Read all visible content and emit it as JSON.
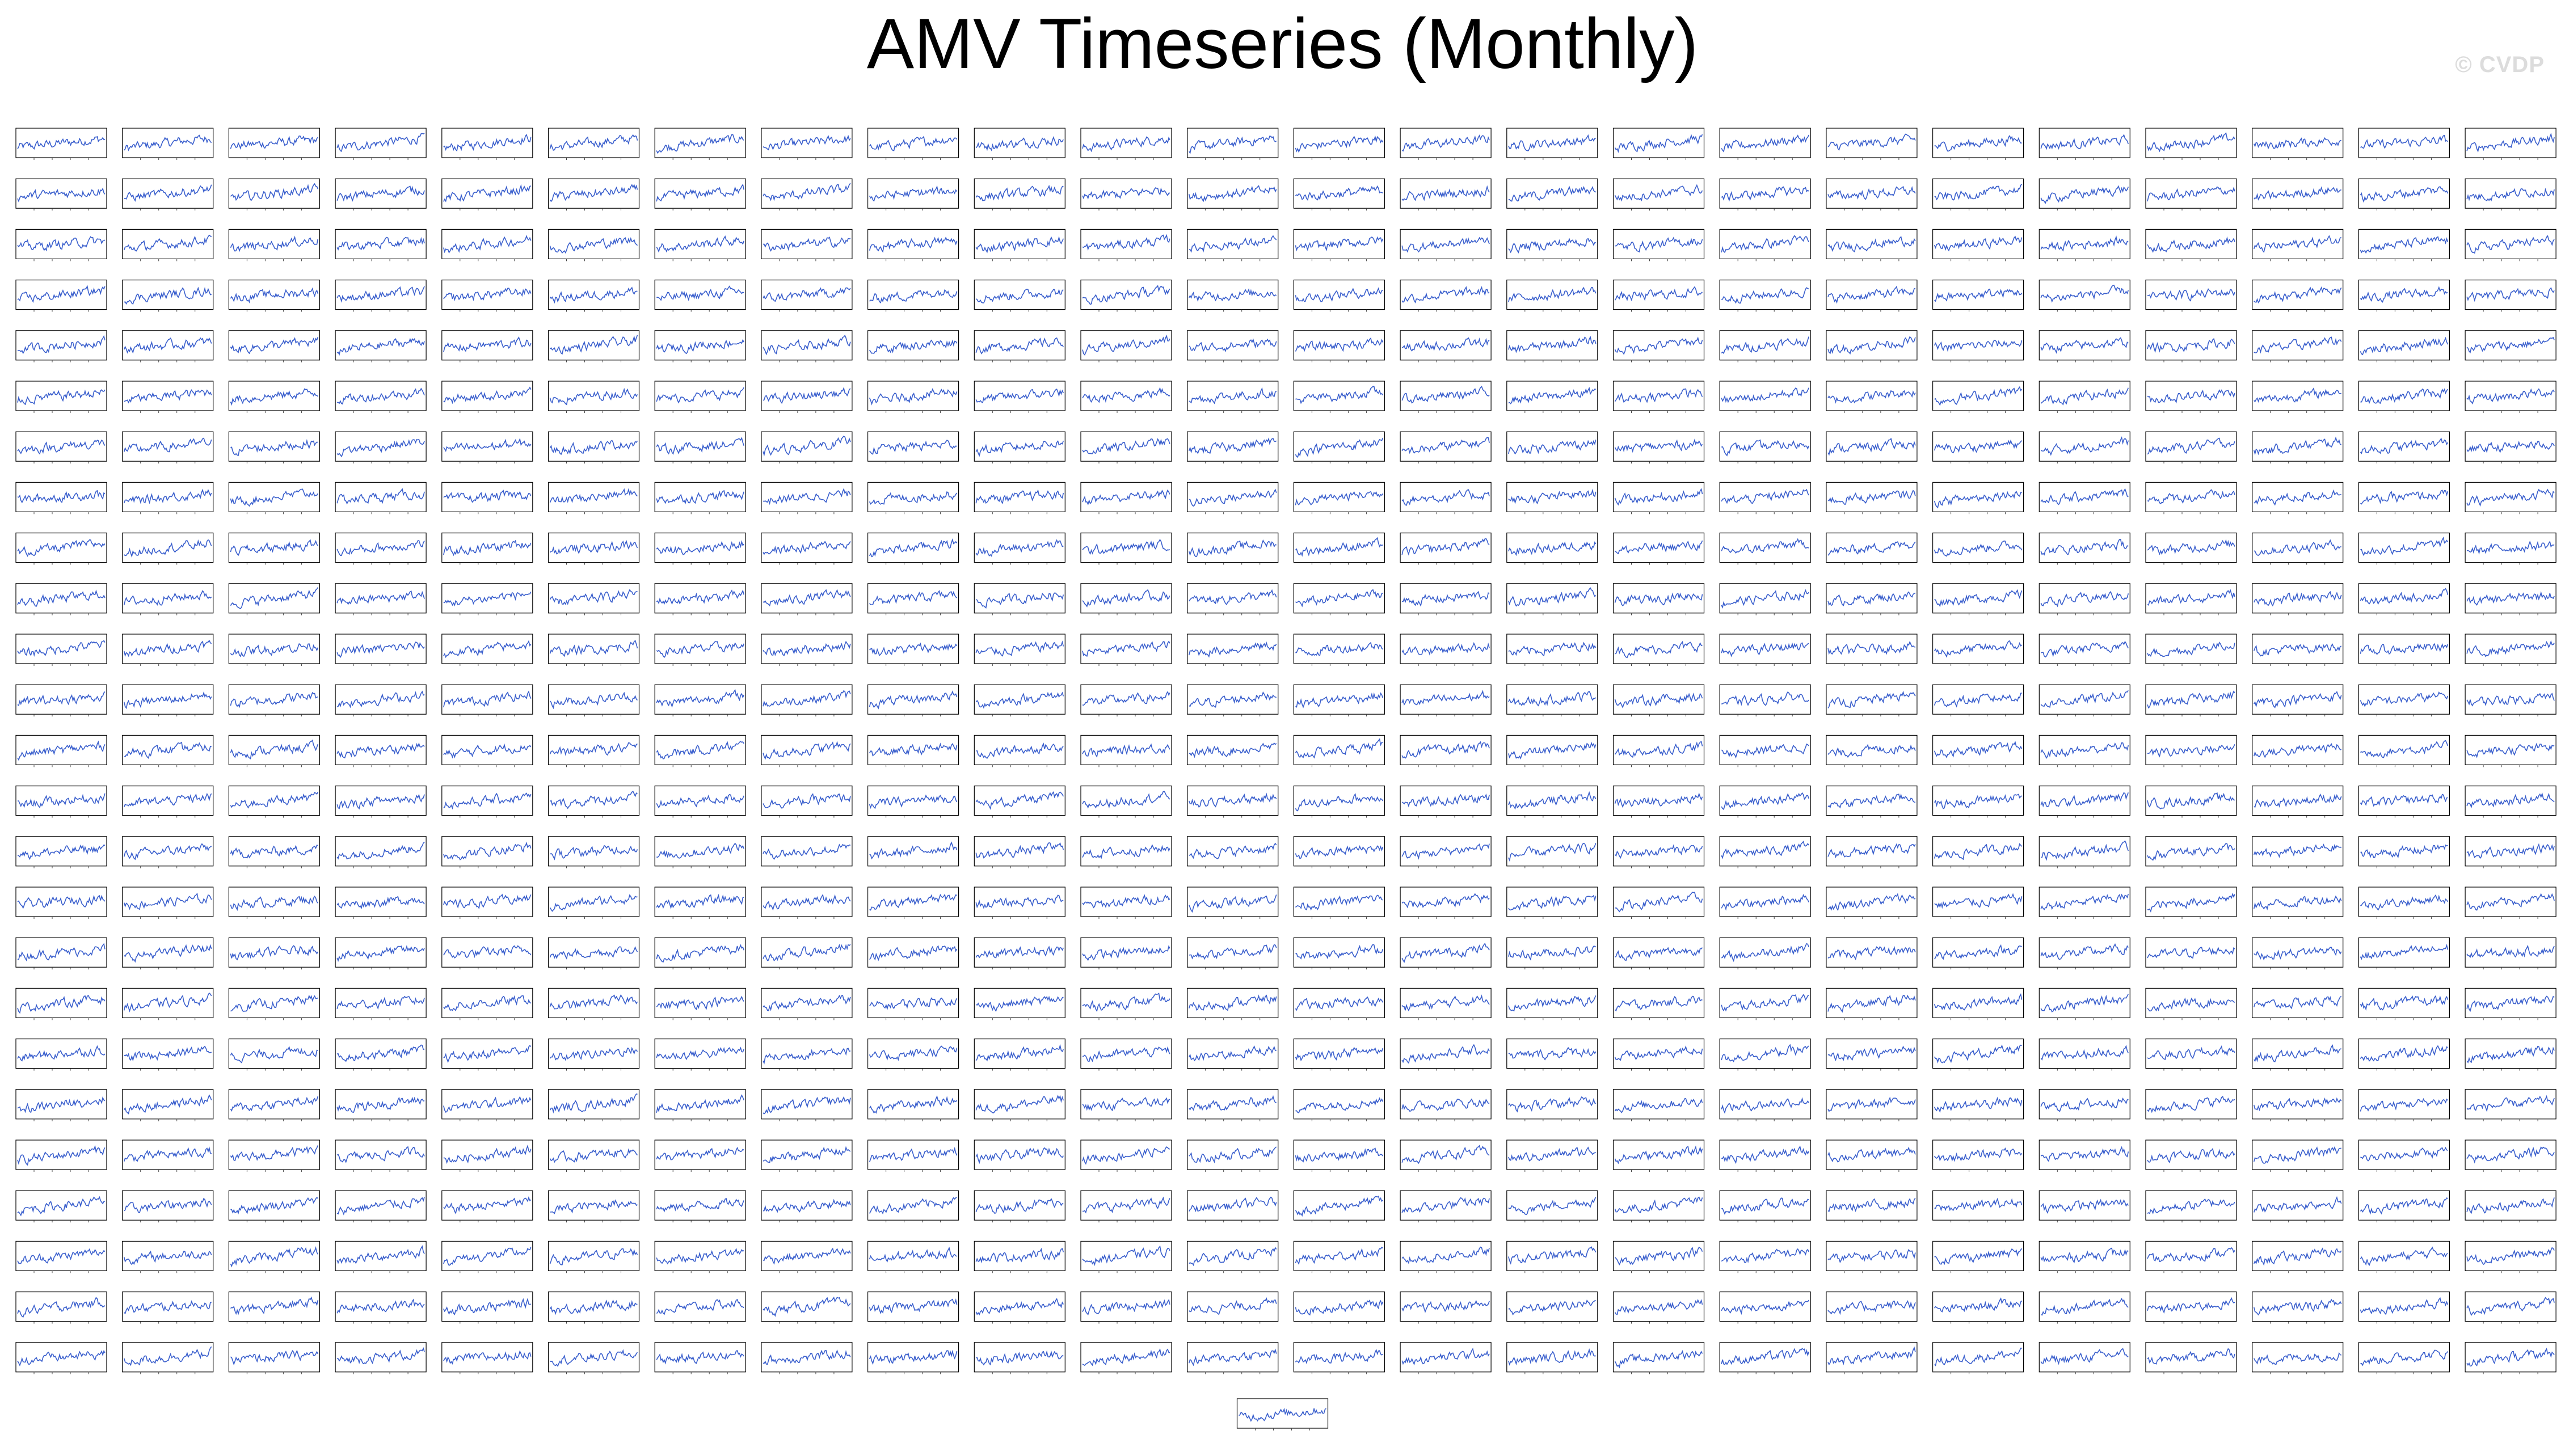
{
  "figure": {
    "title": "AMV Timeseries (Monthly)",
    "watermark": "© CVDP"
  },
  "colors": {
    "series": "#3a5fcd",
    "panel_border": "#000000",
    "background": "#ffffff",
    "watermark": "#dcdcdc"
  },
  "chart_data": {
    "type": "line",
    "layout": "small-multiples grid",
    "panel_count": 601,
    "rows": 26,
    "cols": 24,
    "last_row_panels": 1,
    "series_style": "noisy monthly timeseries with slight upward trend",
    "grid": false,
    "legend": "none"
  }
}
